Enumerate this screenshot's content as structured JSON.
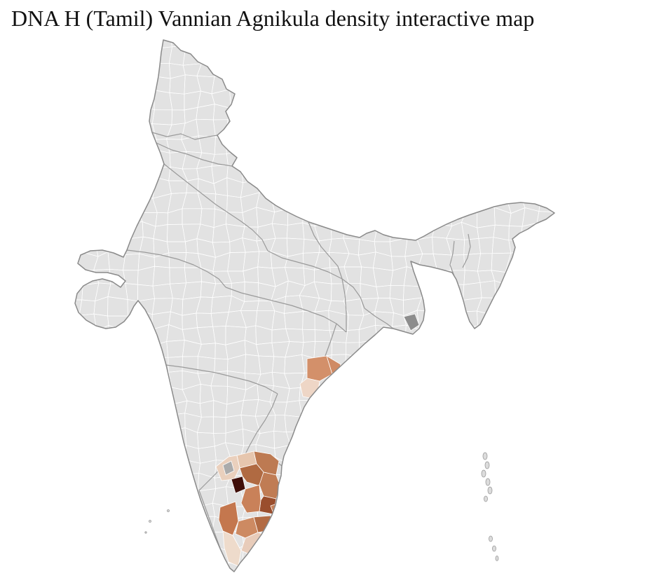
{
  "page": {
    "title": "DNA H (Tamil) Vannian Agnikula density interactive map",
    "background_color": "#ffffff"
  },
  "map": {
    "region_name": "India",
    "base_fill": "#e2e2e2",
    "district_border_color": "#ffffff",
    "state_border_color": "#9a9a9a",
    "country_outline_color": "#8a8a8a",
    "island_fill": "#dcdcdc",
    "density_scale": {
      "lowest": "#f0ddd0",
      "low": "#e6c6ae",
      "medium": "#cd8a62",
      "high": "#9a4e2d",
      "highest": "#3f0e08"
    },
    "highlighted_districts": [
      {
        "id": "od1",
        "color": "#d3906a"
      },
      {
        "id": "od2",
        "color": "#eed6c6"
      },
      {
        "id": "od3",
        "color": "#cf8a64"
      },
      {
        "id": "tn0",
        "color": "#ead0bd"
      },
      {
        "id": "tn1",
        "color": "#e6c6ae"
      },
      {
        "id": "tn2",
        "color": "#bd7a52"
      },
      {
        "id": "tn4",
        "color": "#b06a42"
      },
      {
        "id": "tn5",
        "color": "#3f0e08"
      },
      {
        "id": "tn6",
        "color": "#c07c54"
      },
      {
        "id": "tn7",
        "color": "#9a4e2d"
      },
      {
        "id": "tn8",
        "color": "#c98159"
      },
      {
        "id": "tn9",
        "color": "#c4774e"
      },
      {
        "id": "tn10",
        "color": "#cd8a62"
      },
      {
        "id": "tn11",
        "color": "#b26b44"
      },
      {
        "id": "tn12",
        "color": "#c8825a"
      },
      {
        "id": "tn13",
        "color": "#e8ccba"
      },
      {
        "id": "tn14",
        "color": "#eedbcb"
      },
      {
        "id": "tn15",
        "color": "#f0e0d2"
      },
      {
        "id": "gray1",
        "color": "#8d8d8d"
      },
      {
        "id": "gray2",
        "color": "#ababab"
      }
    ]
  }
}
